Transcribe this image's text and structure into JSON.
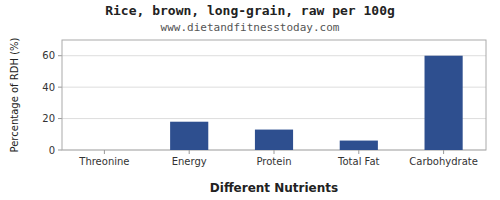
{
  "chart_data": {
    "type": "bar",
    "title": "Rice, brown, long-grain, raw per 100g",
    "subtitle": "www.dietandfitnesstoday.com",
    "xlabel": "Different Nutrients",
    "ylabel": "Percentage of RDH (%)",
    "categories": [
      "Threonine",
      "Energy",
      "Protein",
      "Total Fat",
      "Carbohydrate"
    ],
    "values": [
      0,
      18,
      13,
      6,
      60
    ],
    "color": "#2e4f8f",
    "ylim": [
      0,
      70
    ],
    "yticks": [
      0,
      20,
      40,
      60
    ],
    "grid": true
  }
}
